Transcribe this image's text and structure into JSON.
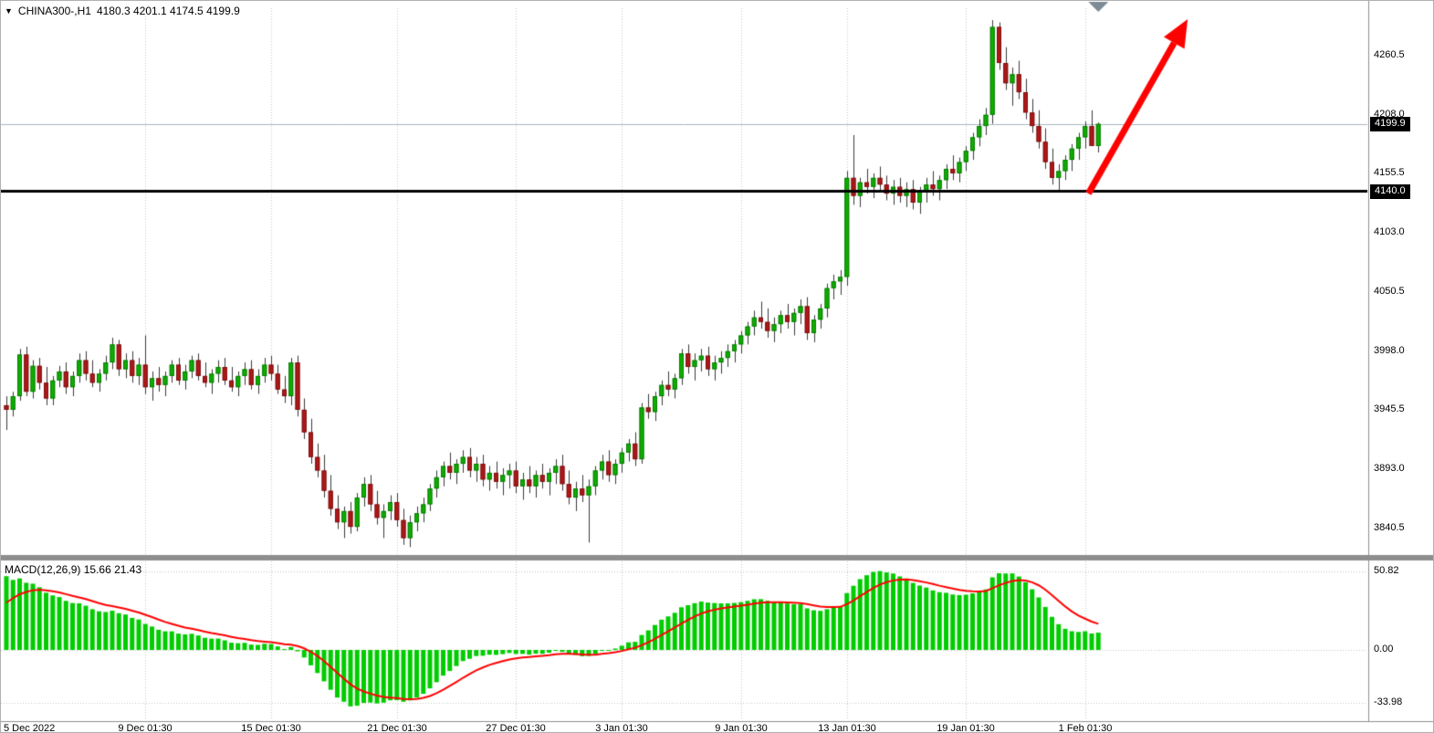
{
  "header": {
    "symbol": "CHINA300-,H1",
    "ohlc": "4180.3 4201.1 4174.5 4199.9"
  },
  "badges": {
    "bid": "4199.9",
    "hline": "4140.0"
  },
  "price_axis": {
    "labels": [
      "4260.5",
      "4208.0",
      "4155.5",
      "4103.0",
      "4050.5",
      "3998.0",
      "3945.5",
      "3893.0",
      "3840.5"
    ]
  },
  "time_axis": {
    "labels": [
      "5 Dec 2022",
      "9 Dec 01:30",
      "15 Dec 01:30",
      "21 Dec 01:30",
      "27 Dec 01:30",
      "3 Jan 01:30",
      "9 Jan 01:30",
      "13 Jan 01:30",
      "19 Jan 01:30",
      "1 Feb 01:30"
    ],
    "tick_indices": [
      0,
      21,
      40,
      59,
      77,
      93,
      111,
      127,
      145,
      163
    ]
  },
  "macd_panel": {
    "title": "MACD(12,26,9)",
    "values": "15.66 21.43",
    "macd_value": 15.66,
    "signal_value": 21.43,
    "axis_labels": [
      "50.82",
      "0.00",
      "-33.98"
    ]
  },
  "colors": {
    "candle_up": "#0fae00",
    "candle_up_border": "#067a00",
    "candle_down": "#b01818",
    "candle_down_border": "#7a0f0f",
    "wick": "#3a3a3a",
    "macd_histogram": "#00cc00",
    "macd_signal": "#ff0000",
    "bid_line": "#a8b6c0",
    "hline": "#000000",
    "arrow": "#ff0000",
    "grid": "#c4c4c4",
    "separator": "#8e8e8e",
    "top_marker": "#7e8b96",
    "axis_text": "#000000"
  },
  "chart_data": {
    "type": "candlestick",
    "symbol": "CHINA300-",
    "timeframe": "H1",
    "title": "CHINA300-,H1",
    "last_ohlc": {
      "open": 4180.3,
      "high": 4201.1,
      "low": 4174.5,
      "close": 4199.9
    },
    "y_axis_ticks": [
      4260.5,
      4208.0,
      4155.5,
      4103.0,
      4050.5,
      3998.0,
      3945.5,
      3893.0,
      3840.5
    ],
    "ylim": [
      3820,
      4300
    ],
    "x_tick_labels": [
      "5 Dec 2022",
      "9 Dec 01:30",
      "15 Dec 01:30",
      "21 Dec 01:30",
      "27 Dec 01:30",
      "3 Jan 01:30",
      "9 Jan 01:30",
      "13 Jan 01:30",
      "19 Jan 01:30",
      "1 Feb 01:30"
    ],
    "x_tick_indices": [
      0,
      21,
      40,
      59,
      77,
      93,
      111,
      127,
      145,
      163
    ],
    "grid": "vertical-dotted",
    "candles": [
      [
        3950,
        3958,
        3928,
        3946
      ],
      [
        3946,
        3962,
        3940,
        3958
      ],
      [
        3958,
        4000,
        3954,
        3995
      ],
      [
        3995,
        4002,
        3958,
        3962
      ],
      [
        3962,
        3990,
        3956,
        3985
      ],
      [
        3985,
        3992,
        3964,
        3970
      ],
      [
        3970,
        3984,
        3950,
        3956
      ],
      [
        3956,
        3976,
        3950,
        3972
      ],
      [
        3972,
        3985,
        3966,
        3980
      ],
      [
        3980,
        3988,
        3960,
        3966
      ],
      [
        3966,
        3980,
        3958,
        3976
      ],
      [
        3976,
        3996,
        3970,
        3990
      ],
      [
        3990,
        3998,
        3972,
        3978
      ],
      [
        3978,
        3990,
        3966,
        3970
      ],
      [
        3970,
        3982,
        3962,
        3978
      ],
      [
        3978,
        3994,
        3972,
        3988
      ],
      [
        3988,
        4010,
        3982,
        4004
      ],
      [
        4004,
        4008,
        3976,
        3982
      ],
      [
        3982,
        3996,
        3974,
        3990
      ],
      [
        3990,
        3998,
        3970,
        3976
      ],
      [
        3976,
        3992,
        3968,
        3986
      ],
      [
        3986,
        4012,
        3960,
        3966
      ],
      [
        3966,
        3980,
        3954,
        3974
      ],
      [
        3974,
        3984,
        3962,
        3968
      ],
      [
        3968,
        3980,
        3958,
        3976
      ],
      [
        3976,
        3990,
        3970,
        3986
      ],
      [
        3986,
        3992,
        3968,
        3972
      ],
      [
        3972,
        3986,
        3964,
        3980
      ],
      [
        3980,
        3994,
        3974,
        3990
      ],
      [
        3990,
        3996,
        3972,
        3976
      ],
      [
        3976,
        3988,
        3966,
        3970
      ],
      [
        3970,
        3982,
        3960,
        3978
      ],
      [
        3978,
        3990,
        3970,
        3984
      ],
      [
        3984,
        3992,
        3968,
        3972
      ],
      [
        3972,
        3984,
        3962,
        3966
      ],
      [
        3966,
        3980,
        3958,
        3976
      ],
      [
        3976,
        3988,
        3968,
        3982
      ],
      [
        3982,
        3990,
        3964,
        3968
      ],
      [
        3968,
        3982,
        3960,
        3976
      ],
      [
        3976,
        3992,
        3970,
        3986
      ],
      [
        3986,
        3994,
        3972,
        3978
      ],
      [
        3978,
        3986,
        3960,
        3964
      ],
      [
        3964,
        3976,
        3952,
        3958
      ],
      [
        3958,
        3992,
        3950,
        3988
      ],
      [
        3988,
        3994,
        3940,
        3946
      ],
      [
        3946,
        3956,
        3920,
        3926
      ],
      [
        3926,
        3938,
        3898,
        3904
      ],
      [
        3904,
        3916,
        3886,
        3892
      ],
      [
        3892,
        3906,
        3868,
        3874
      ],
      [
        3874,
        3888,
        3852,
        3858
      ],
      [
        3858,
        3870,
        3840,
        3846
      ],
      [
        3846,
        3860,
        3832,
        3856
      ],
      [
        3856,
        3864,
        3836,
        3842
      ],
      [
        3842,
        3872,
        3838,
        3868
      ],
      [
        3868,
        3886,
        3860,
        3880
      ],
      [
        3880,
        3888,
        3856,
        3862
      ],
      [
        3862,
        3874,
        3844,
        3850
      ],
      [
        3850,
        3862,
        3832,
        3856
      ],
      [
        3856,
        3870,
        3848,
        3864
      ],
      [
        3864,
        3872,
        3842,
        3848
      ],
      [
        3848,
        3858,
        3826,
        3832
      ],
      [
        3832,
        3852,
        3824,
        3846
      ],
      [
        3846,
        3860,
        3838,
        3854
      ],
      [
        3854,
        3868,
        3846,
        3862
      ],
      [
        3862,
        3880,
        3856,
        3876
      ],
      [
        3876,
        3892,
        3868,
        3886
      ],
      [
        3886,
        3900,
        3878,
        3896
      ],
      [
        3896,
        3908,
        3884,
        3890
      ],
      [
        3890,
        3902,
        3880,
        3898
      ],
      [
        3898,
        3910,
        3890,
        3904
      ],
      [
        3904,
        3912,
        3886,
        3892
      ],
      [
        3892,
        3904,
        3882,
        3898
      ],
      [
        3898,
        3906,
        3878,
        3884
      ],
      [
        3884,
        3896,
        3874,
        3890
      ],
      [
        3890,
        3900,
        3876,
        3882
      ],
      [
        3882,
        3894,
        3870,
        3888
      ],
      [
        3888,
        3898,
        3876,
        3892
      ],
      [
        3892,
        3900,
        3872,
        3878
      ],
      [
        3878,
        3890,
        3866,
        3884
      ],
      [
        3884,
        3896,
        3872,
        3878
      ],
      [
        3878,
        3892,
        3868,
        3888
      ],
      [
        3888,
        3898,
        3876,
        3882
      ],
      [
        3882,
        3894,
        3870,
        3890
      ],
      [
        3890,
        3902,
        3880,
        3896
      ],
      [
        3896,
        3906,
        3874,
        3880
      ],
      [
        3880,
        3892,
        3862,
        3868
      ],
      [
        3868,
        3882,
        3856,
        3876
      ],
      [
        3876,
        3888,
        3864,
        3870
      ],
      [
        3870,
        3884,
        3828,
        3878
      ],
      [
        3878,
        3896,
        3870,
        3892
      ],
      [
        3892,
        3906,
        3884,
        3900
      ],
      [
        3900,
        3910,
        3882,
        3888
      ],
      [
        3888,
        3902,
        3880,
        3898
      ],
      [
        3898,
        3912,
        3890,
        3908
      ],
      [
        3908,
        3920,
        3900,
        3916
      ],
      [
        3916,
        3926,
        3896,
        3902
      ],
      [
        3902,
        3952,
        3898,
        3948
      ],
      [
        3948,
        3960,
        3938,
        3944
      ],
      [
        3944,
        3962,
        3936,
        3958
      ],
      [
        3958,
        3972,
        3950,
        3968
      ],
      [
        3968,
        3980,
        3958,
        3964
      ],
      [
        3964,
        3978,
        3956,
        3974
      ],
      [
        3974,
        4000,
        3968,
        3996
      ],
      [
        3996,
        4004,
        3978,
        3984
      ],
      [
        3984,
        3996,
        3972,
        3990
      ],
      [
        3990,
        4000,
        3980,
        3994
      ],
      [
        3994,
        4002,
        3976,
        3982
      ],
      [
        3982,
        3994,
        3972,
        3988
      ],
      [
        3988,
        3998,
        3978,
        3992
      ],
      [
        3992,
        4004,
        3984,
        3998
      ],
      [
        3998,
        4008,
        3988,
        4004
      ],
      [
        4004,
        4016,
        3996,
        4012
      ],
      [
        4012,
        4024,
        4004,
        4020
      ],
      [
        4020,
        4034,
        4012,
        4028
      ],
      [
        4028,
        4042,
        4018,
        4024
      ],
      [
        4024,
        4036,
        4010,
        4016
      ],
      [
        4016,
        4028,
        4006,
        4022
      ],
      [
        4022,
        4034,
        4014,
        4030
      ],
      [
        4030,
        4040,
        4018,
        4024
      ],
      [
        4024,
        4036,
        4012,
        4032
      ],
      [
        4032,
        4044,
        4022,
        4038
      ],
      [
        4038,
        4046,
        4008,
        4014
      ],
      [
        4014,
        4030,
        4006,
        4026
      ],
      [
        4026,
        4040,
        4018,
        4036
      ],
      [
        4036,
        4058,
        4028,
        4054
      ],
      [
        4054,
        4066,
        4044,
        4060
      ],
      [
        4060,
        4070,
        4048,
        4064
      ],
      [
        4064,
        4158,
        4056,
        4152
      ],
      [
        4152,
        4190,
        4128,
        4136
      ],
      [
        4136,
        4152,
        4126,
        4148
      ],
      [
        4148,
        4160,
        4138,
        4144
      ],
      [
        4144,
        4156,
        4134,
        4152
      ],
      [
        4152,
        4162,
        4140,
        4146
      ],
      [
        4146,
        4154,
        4132,
        4138
      ],
      [
        4138,
        4150,
        4128,
        4144
      ],
      [
        4144,
        4152,
        4130,
        4136
      ],
      [
        4136,
        4148,
        4126,
        4142
      ],
      [
        4142,
        4150,
        4124,
        4130
      ],
      [
        4130,
        4144,
        4120,
        4140
      ],
      [
        4140,
        4152,
        4130,
        4146
      ],
      [
        4146,
        4158,
        4136,
        4142
      ],
      [
        4142,
        4154,
        4132,
        4150
      ],
      [
        4150,
        4164,
        4142,
        4160
      ],
      [
        4160,
        4172,
        4150,
        4156
      ],
      [
        4156,
        4170,
        4148,
        4166
      ],
      [
        4166,
        4180,
        4158,
        4176
      ],
      [
        4176,
        4192,
        4168,
        4188
      ],
      [
        4188,
        4204,
        4180,
        4198
      ],
      [
        4198,
        4214,
        4190,
        4208
      ],
      [
        4208,
        4292,
        4200,
        4286
      ],
      [
        4286,
        4290,
        4248,
        4254
      ],
      [
        4254,
        4268,
        4230,
        4236
      ],
      [
        4236,
        4250,
        4216,
        4244
      ],
      [
        4244,
        4256,
        4222,
        4228
      ],
      [
        4228,
        4240,
        4204,
        4210
      ],
      [
        4210,
        4222,
        4192,
        4198
      ],
      [
        4198,
        4212,
        4178,
        4184
      ],
      [
        4184,
        4196,
        4160,
        4166
      ],
      [
        4166,
        4178,
        4146,
        4152
      ],
      [
        4152,
        4164,
        4140,
        4158
      ],
      [
        4158,
        4172,
        4150,
        4168
      ],
      [
        4168,
        4182,
        4158,
        4178
      ],
      [
        4178,
        4192,
        4168,
        4188
      ],
      [
        4188,
        4202,
        4178,
        4198
      ],
      [
        4198,
        4212,
        4184,
        4180.3
      ],
      [
        4180.3,
        4201.1,
        4174.5,
        4199.9
      ]
    ],
    "indicator": {
      "name": "MACD",
      "params": [
        12,
        26,
        9
      ],
      "macd_value": 15.66,
      "signal_value": 21.43,
      "axis_ticks": [
        50.82,
        0.0,
        -33.98
      ],
      "histogram_color": "#00cc00",
      "signal_color": "#ff0000"
    },
    "annotations": {
      "horizontal_line": {
        "price": 4140.0,
        "label": "4140.0",
        "color": "#000000",
        "width": 3
      },
      "bid_line": {
        "price": 4199.9,
        "label": "4199.9"
      },
      "trend_arrow": {
        "type": "arrow",
        "color": "#ff0000",
        "from": {
          "index": 163.5,
          "price": 4138
        },
        "to": {
          "index": 178.5,
          "price": 4293
        }
      },
      "top_marker": {
        "type": "triangle-down",
        "index": 165
      }
    }
  }
}
